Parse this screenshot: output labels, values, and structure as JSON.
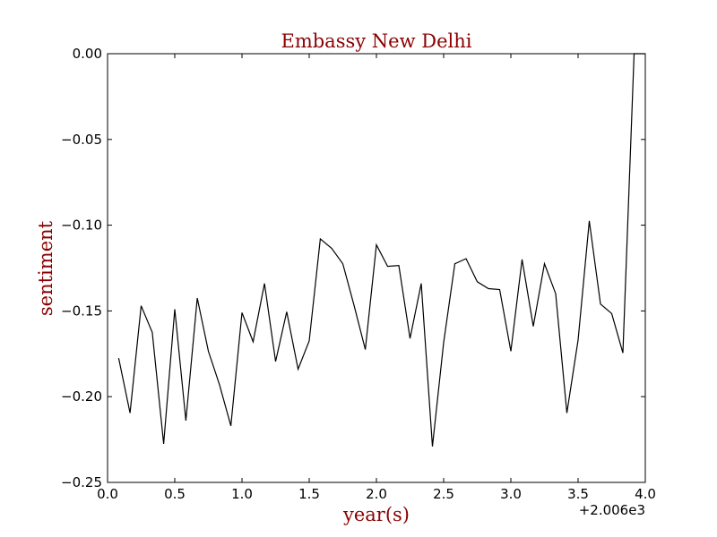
{
  "chart_data": {
    "type": "line",
    "title": "Embassy New Delhi",
    "xlabel": "year(s)",
    "ylabel": "sentiment",
    "x_offset_label": "+2.006e3",
    "xlim": [
      0.0,
      4.0
    ],
    "ylim": [
      -0.25,
      0.0
    ],
    "x_ticks": [
      "0.0",
      "0.5",
      "1.0",
      "1.5",
      "2.0",
      "2.5",
      "3.0",
      "3.5",
      "4.0"
    ],
    "y_ticks": [
      "0.00",
      "−0.05",
      "−0.10",
      "−0.15",
      "−0.20",
      "−0.25"
    ],
    "colors": {
      "title": "#8b0000",
      "line": "#000000",
      "axes": "#000000"
    },
    "grid": false,
    "series": [
      {
        "x": [
          0.083,
          0.167,
          0.25,
          0.333,
          0.417,
          0.5,
          0.583,
          0.667,
          0.75,
          0.833,
          0.917,
          1.0,
          1.083,
          1.167,
          1.25,
          1.333,
          1.417,
          1.5,
          1.583,
          1.667,
          1.75,
          1.833,
          1.917,
          2.0,
          2.083,
          2.167,
          2.25,
          2.333,
          2.417,
          2.5,
          2.583,
          2.667,
          2.75,
          2.833,
          2.917,
          3.0,
          3.083,
          3.167,
          3.25,
          3.333,
          3.417,
          3.5,
          3.583,
          3.667,
          3.75,
          3.833,
          3.917,
          4.0
        ],
        "y": [
          -0.1775,
          -0.2095,
          -0.147,
          -0.1625,
          -0.2275,
          -0.149,
          -0.214,
          -0.1425,
          -0.1735,
          -0.193,
          -0.217,
          -0.151,
          -0.168,
          -0.134,
          -0.1795,
          -0.1505,
          -0.184,
          -0.1675,
          -0.108,
          -0.1135,
          -0.1225,
          -0.1465,
          -0.1725,
          -0.1115,
          -0.124,
          -0.1235,
          -0.166,
          -0.134,
          -0.229,
          -0.1685,
          -0.1225,
          -0.1195,
          -0.133,
          -0.137,
          -0.1375,
          -0.1735,
          -0.12,
          -0.159,
          -0.1225,
          -0.14,
          -0.2095,
          -0.167,
          -0.0975,
          -0.146,
          -0.1515,
          -0.1745,
          0.0,
          0.0
        ]
      }
    ]
  }
}
